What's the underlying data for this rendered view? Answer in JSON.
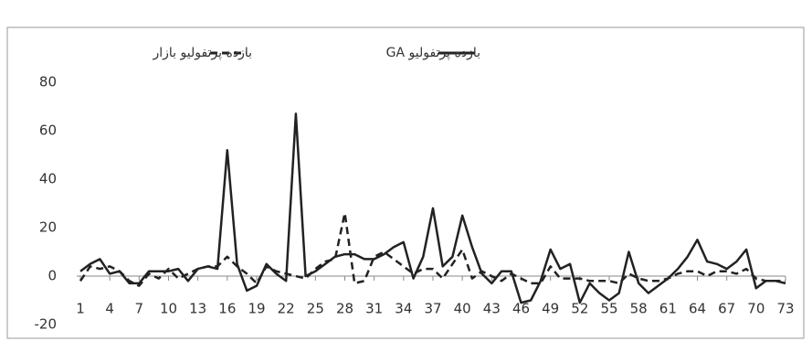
{
  "chart_data": {
    "type": "line",
    "x": [
      1,
      2,
      3,
      4,
      5,
      6,
      7,
      8,
      9,
      10,
      11,
      12,
      13,
      14,
      15,
      16,
      17,
      18,
      19,
      20,
      21,
      22,
      23,
      24,
      25,
      26,
      27,
      28,
      29,
      30,
      31,
      32,
      33,
      34,
      35,
      36,
      37,
      38,
      39,
      40,
      41,
      42,
      43,
      44,
      45,
      46,
      47,
      48,
      49,
      50,
      51,
      52,
      53,
      54,
      55,
      56,
      57,
      58,
      59,
      60,
      61,
      62,
      63,
      64,
      65,
      66,
      67,
      68,
      69,
      70,
      71,
      72,
      73
    ],
    "xlim": [
      1,
      73
    ],
    "xticks": [
      1,
      4,
      7,
      10,
      13,
      16,
      19,
      22,
      25,
      28,
      31,
      34,
      37,
      40,
      43,
      46,
      49,
      52,
      55,
      58,
      61,
      64,
      67,
      70,
      73
    ],
    "ylim": [
      -20,
      80
    ],
    "yticks": [
      -20,
      0,
      20,
      40,
      60,
      80
    ],
    "series": [
      {
        "name": "بازده پرتفولیو بازار",
        "color": "#222222",
        "dash": true,
        "values": [
          -2,
          4,
          3,
          4,
          2,
          -2,
          -4,
          1,
          -1,
          3,
          -1,
          1,
          3,
          4,
          4,
          8,
          4,
          1,
          -3,
          4,
          2,
          1,
          0,
          -1,
          3,
          6,
          7,
          26,
          -3,
          -2,
          8,
          10,
          7,
          4,
          1,
          3,
          3,
          -1,
          5,
          11,
          -1,
          2,
          0,
          -2,
          1,
          -1,
          -3,
          -3,
          4,
          -1,
          -1,
          -1,
          -2,
          -2,
          -2,
          -3,
          1,
          -1,
          -2,
          -2,
          -1,
          1,
          2,
          2,
          0,
          2,
          2,
          1,
          3,
          -1,
          -2,
          -2,
          -2
        ]
      },
      {
        "name": "بازده پرتفولیو GA",
        "color": "#222222",
        "dash": false,
        "values": [
          2,
          5,
          7,
          1,
          2,
          -3,
          -3,
          2,
          2,
          2,
          3,
          -2,
          3,
          4,
          3,
          52,
          5,
          -6,
          -4,
          5,
          1,
          -2,
          67,
          0,
          2,
          5,
          8,
          9,
          9,
          7,
          7,
          9,
          12,
          14,
          -1,
          8,
          28,
          4,
          8,
          25,
          12,
          1,
          -3,
          2,
          2,
          -11,
          -10,
          -2,
          11,
          3,
          5,
          -11,
          -3,
          -7,
          -10,
          -7,
          10,
          -3,
          -7,
          -4,
          -1,
          3,
          8,
          15,
          6,
          5,
          3,
          6,
          11,
          -5,
          -2,
          -2,
          -3
        ]
      }
    ]
  }
}
